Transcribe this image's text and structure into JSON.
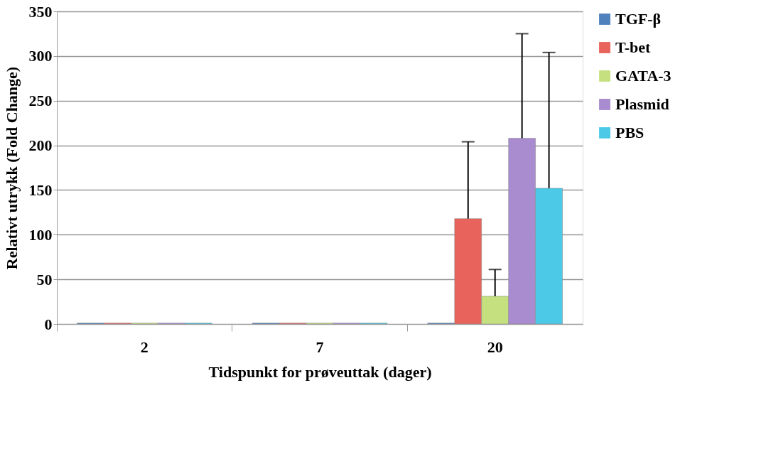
{
  "chart_data": {
    "type": "bar",
    "xlabel": "Tidspunkt for prøveuttak (dager)",
    "ylabel": "Relativt utrykk (Fold Change)",
    "categories": [
      "2",
      "7",
      "20"
    ],
    "series": [
      {
        "name": "TGF-β",
        "color": "#4f81bd",
        "values": [
          1,
          1,
          1
        ]
      },
      {
        "name": "T-bet",
        "color": "#e8635b",
        "values": [
          1,
          1,
          118
        ],
        "errors": [
          null,
          null,
          [
            118,
            204
          ]
        ]
      },
      {
        "name": "GATA-3",
        "color": "#c5e07f",
        "values": [
          1,
          1,
          31
        ],
        "errors": [
          null,
          null,
          [
            31,
            61
          ]
        ]
      },
      {
        "name": "Plasmid",
        "color": "#a98bcf",
        "values": [
          1,
          1,
          208
        ],
        "errors": [
          null,
          null,
          [
            208,
            325
          ]
        ]
      },
      {
        "name": "PBS",
        "color": "#4bc9e6",
        "values": [
          1,
          1,
          152
        ],
        "errors": [
          null,
          null,
          [
            152,
            304
          ]
        ]
      }
    ],
    "ylim": [
      0,
      350
    ],
    "yticks": [
      0,
      50,
      100,
      150,
      200,
      250,
      300,
      350
    ],
    "grid": "y",
    "legend": "right"
  }
}
